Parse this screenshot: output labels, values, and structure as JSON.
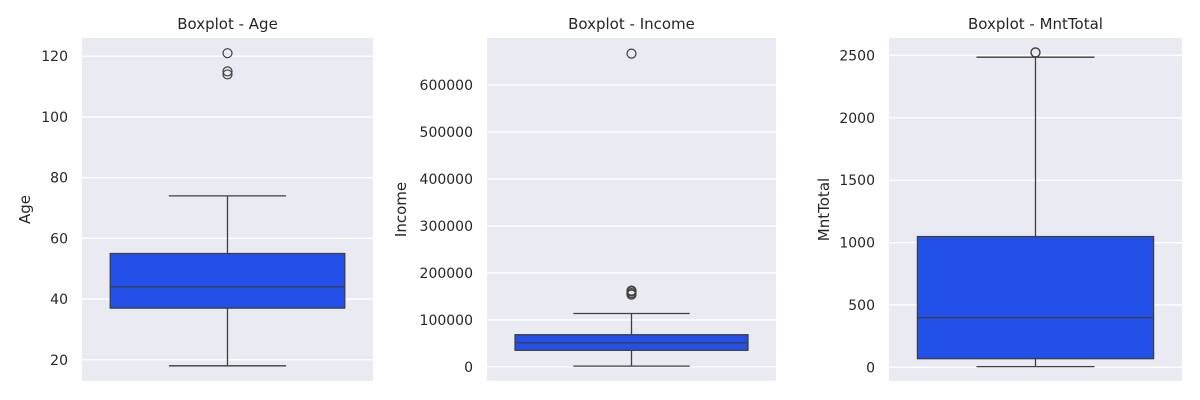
{
  "chart_data": [
    {
      "type": "boxplot",
      "title": "Boxplot - Age",
      "ylabel": "Age",
      "ylim": [
        13,
        126
      ],
      "yticks": [
        20,
        40,
        60,
        80,
        100,
        120
      ],
      "grid": true,
      "box_color": "#2250e8",
      "stats": {
        "whisker_low": 18,
        "q1": 37,
        "median": 44,
        "q3": 55,
        "whisker_high": 74
      },
      "outliers": [
        114,
        115,
        121
      ]
    },
    {
      "type": "boxplot",
      "title": "Boxplot - Income",
      "ylabel": "Income",
      "ylim": [
        -30000,
        700000
      ],
      "yticks": [
        0,
        100000,
        200000,
        300000,
        400000,
        500000,
        600000
      ],
      "grid": true,
      "box_color": "#2250e8",
      "stats": {
        "whisker_low": 1730,
        "q1": 35300,
        "median": 51400,
        "q3": 68500,
        "whisker_high": 113700
      },
      "outliers": [
        153900,
        156900,
        157200,
        160800,
        162400,
        666700
      ]
    },
    {
      "type": "boxplot",
      "title": "Boxplot - MntTotal",
      "ylabel": "MntTotal",
      "ylim": [
        -110,
        2640
      ],
      "yticks": [
        0,
        500,
        1000,
        1500,
        2000,
        2500
      ],
      "grid": true,
      "box_color": "#2250e8",
      "stats": {
        "whisker_low": 5,
        "q1": 69,
        "median": 397,
        "q3": 1048,
        "whisker_high": 2486
      },
      "outliers": [
        2524,
        2525
      ]
    }
  ]
}
